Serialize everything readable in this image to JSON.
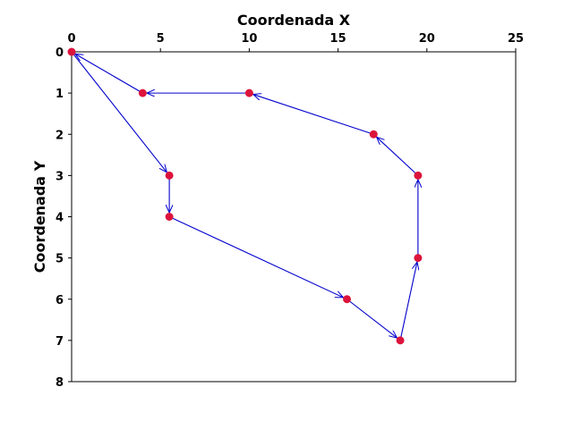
{
  "chart_data": {
    "type": "line",
    "title": "",
    "xlabel": "Coordenada X",
    "ylabel": "Coordenada Y",
    "x_axis_position": "top",
    "y_axis_inverted": true,
    "xlim": [
      0,
      25
    ],
    "ylim": [
      0,
      8
    ],
    "xticks": [
      0,
      5,
      10,
      15,
      20,
      25
    ],
    "yticks": [
      0,
      1,
      2,
      3,
      4,
      5,
      6,
      7,
      8
    ],
    "grid": false,
    "legend": "none",
    "colors": {
      "point": "#dc143c",
      "line": "#0000cd"
    },
    "series": [
      {
        "points": [
          {
            "x": 0,
            "y": 0
          },
          {
            "x": 5.5,
            "y": 3
          },
          {
            "x": 5.5,
            "y": 4
          },
          {
            "x": 15.5,
            "y": 6
          },
          {
            "x": 18.5,
            "y": 7
          },
          {
            "x": 19.5,
            "y": 5
          },
          {
            "x": 19.5,
            "y": 3
          },
          {
            "x": 17,
            "y": 2
          },
          {
            "x": 10,
            "y": 1
          },
          {
            "x": 4,
            "y": 1
          },
          {
            "x": 0,
            "y": 0
          }
        ]
      }
    ]
  }
}
